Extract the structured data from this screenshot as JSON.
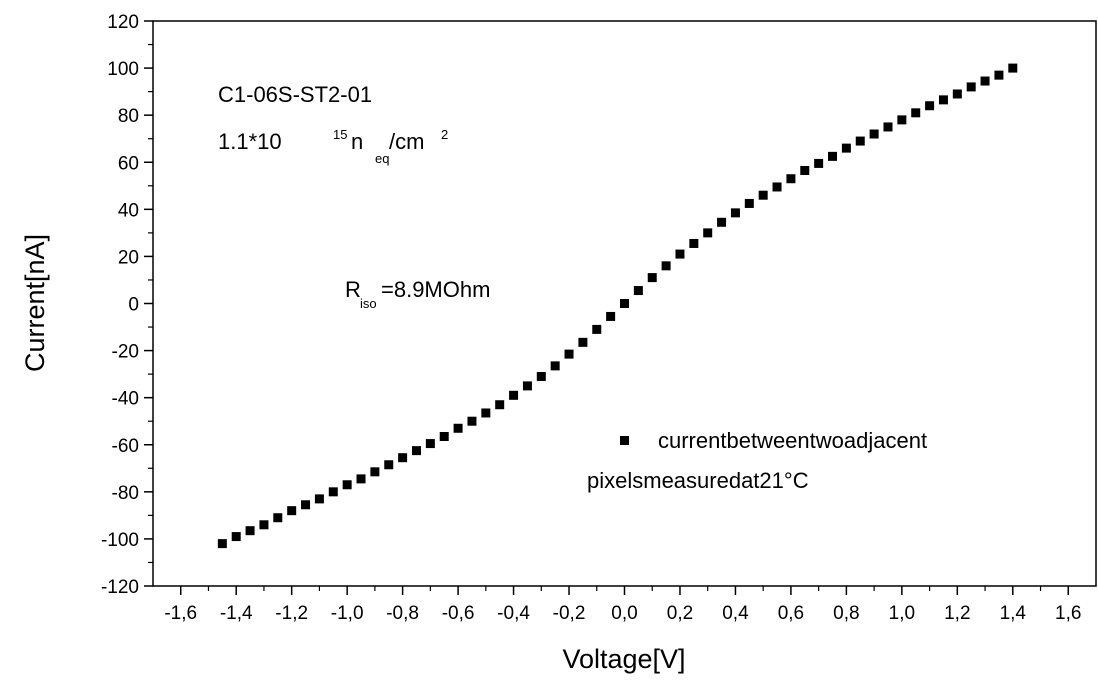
{
  "chart_data": {
    "type": "scatter",
    "xlabel": "Voltage[V]",
    "ylabel": "Current[nA]",
    "xlim": [
      -1.7,
      1.7
    ],
    "ylim": [
      -120,
      120
    ],
    "x_ticks": [
      -1.6,
      -1.4,
      -1.2,
      -1.0,
      -0.8,
      -0.6,
      -0.4,
      -0.2,
      0.0,
      0.2,
      0.4,
      0.6,
      0.8,
      1.0,
      1.2,
      1.4,
      1.6
    ],
    "x_tick_labels": [
      "-1,6",
      "-1,4",
      "-1,2",
      "-1,0",
      "-0,8",
      "-0,6",
      "-0,4",
      "-0,2",
      "0,0",
      "0,2",
      "0,4",
      "0,6",
      "0,8",
      "1,0",
      "1,2",
      "1,4",
      "1,6"
    ],
    "y_ticks": [
      -120,
      -100,
      -80,
      -60,
      -40,
      -20,
      0,
      20,
      40,
      60,
      80,
      100,
      120
    ],
    "y_tick_labels": [
      "-120",
      "-100",
      "-80",
      "-60",
      "-40",
      "-20",
      "0",
      "20",
      "40",
      "60",
      "80",
      "100",
      "120"
    ],
    "grid": false,
    "legend_position": "bottom-right",
    "annotations": {
      "sample_id": "C1-06S-ST2-01",
      "fluence": {
        "base": "1.1*10",
        "exp": "15",
        "n": "n",
        "sub": "eq",
        "unit": "/cm",
        "unit_exp": "2"
      },
      "riso": {
        "R": "R",
        "sub": "iso",
        "value": "=8.9MOhm"
      }
    },
    "series": [
      {
        "legend_line1": "currentbetweentwoadjacent",
        "legend_line2": "pixelsmeasuredat21°C",
        "color": "#000000",
        "marker": "square",
        "x": [
          -1.45,
          -1.4,
          -1.35,
          -1.3,
          -1.25,
          -1.2,
          -1.15,
          -1.1,
          -1.05,
          -1.0,
          -0.95,
          -0.9,
          -0.85,
          -0.8,
          -0.75,
          -0.7,
          -0.65,
          -0.6,
          -0.55,
          -0.5,
          -0.45,
          -0.4,
          -0.35,
          -0.3,
          -0.25,
          -0.2,
          -0.15,
          -0.1,
          -0.05,
          0.0,
          0.05,
          0.1,
          0.15,
          0.2,
          0.25,
          0.3,
          0.35,
          0.4,
          0.45,
          0.5,
          0.55,
          0.6,
          0.65,
          0.7,
          0.75,
          0.8,
          0.85,
          0.9,
          0.95,
          1.0,
          1.05,
          1.1,
          1.15,
          1.2,
          1.25,
          1.3,
          1.35,
          1.4
        ],
        "y": [
          -102,
          -99,
          -96.5,
          -94,
          -91,
          -88,
          -85.5,
          -83,
          -80,
          -77,
          -74.5,
          -71.5,
          -68.5,
          -65.5,
          -62.5,
          -59.5,
          -56.5,
          -53,
          -50,
          -46.5,
          -43,
          -39,
          -35,
          -31,
          -26.5,
          -21.5,
          -16.5,
          -11,
          -5.5,
          0,
          5.5,
          11,
          16,
          21,
          25.5,
          30,
          34.5,
          38.5,
          42.5,
          46,
          49.5,
          53,
          56.5,
          59.5,
          62.5,
          66,
          69,
          72,
          75,
          78,
          81,
          84,
          86.5,
          89,
          92,
          94.5,
          97,
          100
        ]
      }
    ]
  }
}
